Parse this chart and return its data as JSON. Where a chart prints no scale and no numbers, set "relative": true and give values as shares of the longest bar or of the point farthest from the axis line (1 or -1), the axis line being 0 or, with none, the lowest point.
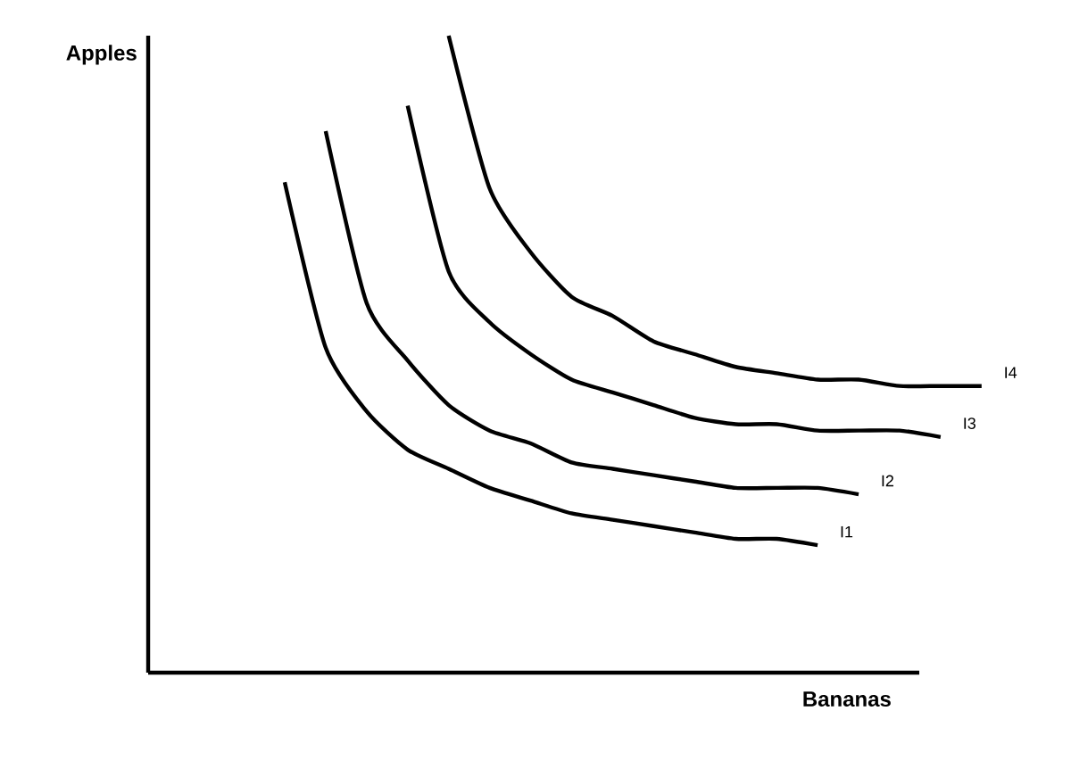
{
  "chart_data": {
    "type": "line",
    "relative": true,
    "xlabel": "Bananas",
    "annotations": [
      "Apples"
    ],
    "categories": [
      null,
      null,
      null,
      null,
      null,
      null,
      null,
      null,
      null,
      null,
      null,
      null,
      null,
      null,
      null,
      null,
      null,
      null
    ],
    "series": [
      {
        "name": "I1",
        "color": "#000000",
        "values": [
          0.77,
          0.51,
          0.41,
          0.35,
          0.32,
          0.29,
          0.27,
          0.25,
          0.24,
          0.23,
          0.22,
          0.21,
          0.21,
          0.2,
          null,
          null,
          null,
          null
        ]
      },
      {
        "name": "I2",
        "color": "#000000",
        "values": [
          null,
          0.85,
          0.58,
          0.49,
          0.42,
          0.38,
          0.36,
          0.33,
          0.32,
          0.31,
          0.3,
          0.29,
          0.29,
          0.29,
          0.28,
          null,
          null,
          null
        ]
      },
      {
        "name": "I3",
        "color": "#000000",
        "values": [
          null,
          null,
          null,
          0.89,
          0.63,
          0.55,
          0.5,
          0.46,
          0.44,
          0.42,
          0.4,
          0.39,
          0.39,
          0.38,
          0.38,
          0.38,
          0.37,
          null
        ]
      },
      {
        "name": "I4",
        "color": "#000000",
        "values": [
          null,
          null,
          null,
          null,
          1.0,
          0.76,
          0.66,
          0.59,
          0.56,
          0.52,
          0.5,
          0.48,
          0.47,
          0.46,
          0.46,
          0.45,
          0.45,
          0.45
        ]
      }
    ]
  }
}
